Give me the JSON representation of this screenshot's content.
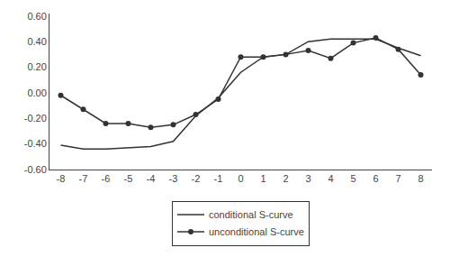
{
  "chart_data": {
    "type": "line",
    "x": [
      -8,
      -7,
      -6,
      -5,
      -4,
      -3,
      -2,
      -1,
      0,
      1,
      2,
      3,
      4,
      5,
      6,
      7,
      8
    ],
    "series": [
      {
        "name": "conditional S-curve",
        "color": "#333333",
        "marker": "none",
        "values": [
          -0.41,
          -0.44,
          -0.44,
          -0.43,
          -0.42,
          -0.38,
          -0.18,
          -0.04,
          0.16,
          0.28,
          0.3,
          0.4,
          0.42,
          0.42,
          0.42,
          0.35,
          0.29
        ]
      },
      {
        "name": "unconditional S-curve",
        "color": "#333333",
        "marker": "circle",
        "values": [
          -0.02,
          -0.13,
          -0.24,
          -0.24,
          -0.27,
          -0.25,
          -0.17,
          -0.05,
          0.28,
          0.28,
          0.3,
          0.33,
          0.27,
          0.39,
          0.43,
          0.34,
          0.14
        ]
      }
    ],
    "xlim": [
      -8.5,
      8.5
    ],
    "ylim": [
      -0.6,
      0.62
    ],
    "xticks": [
      -8,
      -7,
      -6,
      -5,
      -4,
      -3,
      -2,
      -1,
      0,
      1,
      2,
      3,
      4,
      5,
      6,
      7,
      8
    ],
    "yticks": [
      {
        "value": -0.6,
        "label": "-0.60"
      },
      {
        "value": -0.4,
        "label": "-0.40"
      },
      {
        "value": -0.2,
        "label": "-0.20"
      },
      {
        "value": 0.0,
        "label": "0.00"
      },
      {
        "value": 0.2,
        "label": "0.20"
      },
      {
        "value": 0.4,
        "label": "0.40"
      },
      {
        "value": 0.6,
        "label": "0.60"
      }
    ],
    "grid": false,
    "legend": "bottom"
  }
}
